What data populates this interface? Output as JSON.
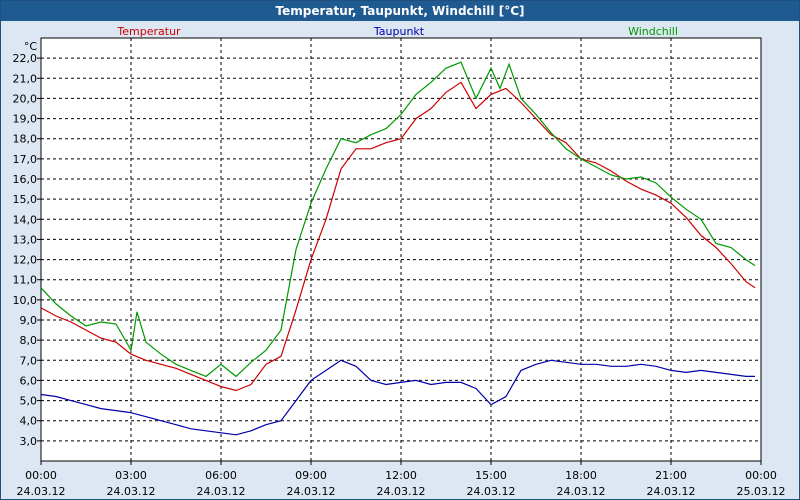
{
  "title": "Temperatur, Taupunkt, Windchill [°C]",
  "chart_data": {
    "type": "line",
    "title": "Temperatur, Taupunkt, Windchill [°C]",
    "ylabel": "°C",
    "ylim": [
      2.0,
      23.0
    ],
    "yticks": [
      "3,0",
      "4,0",
      "5,0",
      "6,0",
      "7,0",
      "8,0",
      "9,0",
      "10,0",
      "11,0",
      "12,0",
      "13,0",
      "14,0",
      "15,0",
      "16,0",
      "17,0",
      "18,0",
      "19,0",
      "20,0",
      "21,0",
      "22,0"
    ],
    "xlim": [
      0,
      24
    ],
    "xticks": [
      {
        "time": "00:00",
        "date": "24.03.12"
      },
      {
        "time": "03:00",
        "date": "24.03.12"
      },
      {
        "time": "06:00",
        "date": "24.03.12"
      },
      {
        "time": "09:00",
        "date": "24.03.12"
      },
      {
        "time": "12:00",
        "date": "24.03.12"
      },
      {
        "time": "15:00",
        "date": "24.03.12"
      },
      {
        "time": "18:00",
        "date": "24.03.12"
      },
      {
        "time": "21:00",
        "date": "24.03.12"
      },
      {
        "time": "00:00",
        "date": "25.03.12"
      }
    ],
    "grid": true,
    "legend_position": "top",
    "series": [
      {
        "name": "Temperatur",
        "color": "#cc0000",
        "x": [
          0,
          0.5,
          1,
          1.5,
          2,
          2.5,
          3,
          3.5,
          4,
          4.5,
          5,
          5.5,
          6,
          6.5,
          7,
          7.5,
          8,
          8.5,
          9,
          9.5,
          10,
          10.5,
          11,
          11.5,
          12,
          12.5,
          13,
          13.5,
          14,
          14.5,
          15,
          15.5,
          16,
          16.5,
          17,
          17.5,
          18,
          18.5,
          19,
          19.5,
          20,
          20.5,
          21,
          21.5,
          22,
          22.5,
          23,
          23.5,
          23.8
        ],
        "y": [
          9.6,
          9.2,
          8.9,
          8.5,
          8.1,
          7.9,
          7.3,
          7.0,
          6.8,
          6.6,
          6.3,
          6.0,
          5.7,
          5.5,
          5.8,
          6.8,
          7.2,
          9.5,
          12.0,
          14.0,
          16.5,
          17.5,
          17.5,
          17.8,
          18.0,
          19.0,
          19.5,
          20.3,
          20.8,
          19.5,
          20.2,
          20.5,
          19.8,
          19.0,
          18.2,
          17.8,
          17.0,
          16.8,
          16.4,
          15.9,
          15.5,
          15.2,
          14.8,
          14.1,
          13.2,
          12.6,
          11.8,
          10.9,
          10.6
        ]
      },
      {
        "name": "Taupunkt",
        "color": "#0000aa",
        "x": [
          0,
          0.5,
          1,
          1.5,
          2,
          2.5,
          3,
          3.5,
          4,
          4.5,
          5,
          5.5,
          6,
          6.5,
          7,
          7.5,
          8,
          8.5,
          9,
          9.5,
          10,
          10.5,
          11,
          11.5,
          12,
          12.5,
          13,
          13.5,
          14,
          14.5,
          15,
          15.5,
          16,
          16.5,
          17,
          17.5,
          18,
          18.5,
          19,
          19.5,
          20,
          20.5,
          21,
          21.5,
          22,
          22.5,
          23,
          23.5,
          23.8
        ],
        "y": [
          5.3,
          5.2,
          5.0,
          4.8,
          4.6,
          4.5,
          4.4,
          4.2,
          4.0,
          3.8,
          3.6,
          3.5,
          3.4,
          3.3,
          3.5,
          3.8,
          4.0,
          5.0,
          6.0,
          6.5,
          7.0,
          6.7,
          6.0,
          5.8,
          5.9,
          6.0,
          5.8,
          5.9,
          5.9,
          5.6,
          4.8,
          5.2,
          6.5,
          6.8,
          7.0,
          6.9,
          6.8,
          6.8,
          6.7,
          6.7,
          6.8,
          6.7,
          6.5,
          6.4,
          6.5,
          6.4,
          6.3,
          6.2,
          6.2
        ]
      },
      {
        "name": "Windchill",
        "color": "#009900",
        "x": [
          0,
          0.5,
          1,
          1.5,
          2,
          2.5,
          3,
          3.2,
          3.5,
          4,
          4.5,
          5,
          5.5,
          6,
          6.5,
          7,
          7.5,
          8,
          8.5,
          9,
          9.5,
          10,
          10.5,
          11,
          11.5,
          12,
          12.5,
          13,
          13.5,
          14,
          14.5,
          15,
          15.3,
          15.6,
          16,
          16.5,
          17,
          17.5,
          18,
          18.5,
          19,
          19.5,
          20,
          20.5,
          21,
          21.5,
          22,
          22.5,
          23,
          23.5,
          23.8
        ],
        "y": [
          10.6,
          9.8,
          9.2,
          8.7,
          8.9,
          8.8,
          7.5,
          9.4,
          7.9,
          7.3,
          6.8,
          6.5,
          6.2,
          6.8,
          6.2,
          6.9,
          7.5,
          8.5,
          12.5,
          14.8,
          16.5,
          18.0,
          17.8,
          18.2,
          18.5,
          19.2,
          20.2,
          20.8,
          21.5,
          21.8,
          20.0,
          21.5,
          20.5,
          21.7,
          20.0,
          19.2,
          18.3,
          17.5,
          17.0,
          16.6,
          16.2,
          16.0,
          16.1,
          15.8,
          15.1,
          14.5,
          14.0,
          12.8,
          12.6,
          12.0,
          11.7
        ]
      }
    ]
  }
}
